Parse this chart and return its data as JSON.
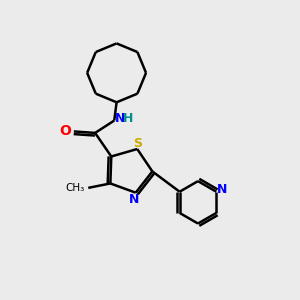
{
  "background_color": "#EBEBEB",
  "bond_color": "#000000",
  "bond_width": 1.8,
  "S_color": "#CCAA00",
  "N_color": "#0000FF",
  "O_color": "#FF0000",
  "figsize": [
    3.0,
    3.0
  ],
  "dpi": 100,
  "xlim": [
    0,
    10
  ],
  "ylim": [
    0,
    10
  ]
}
